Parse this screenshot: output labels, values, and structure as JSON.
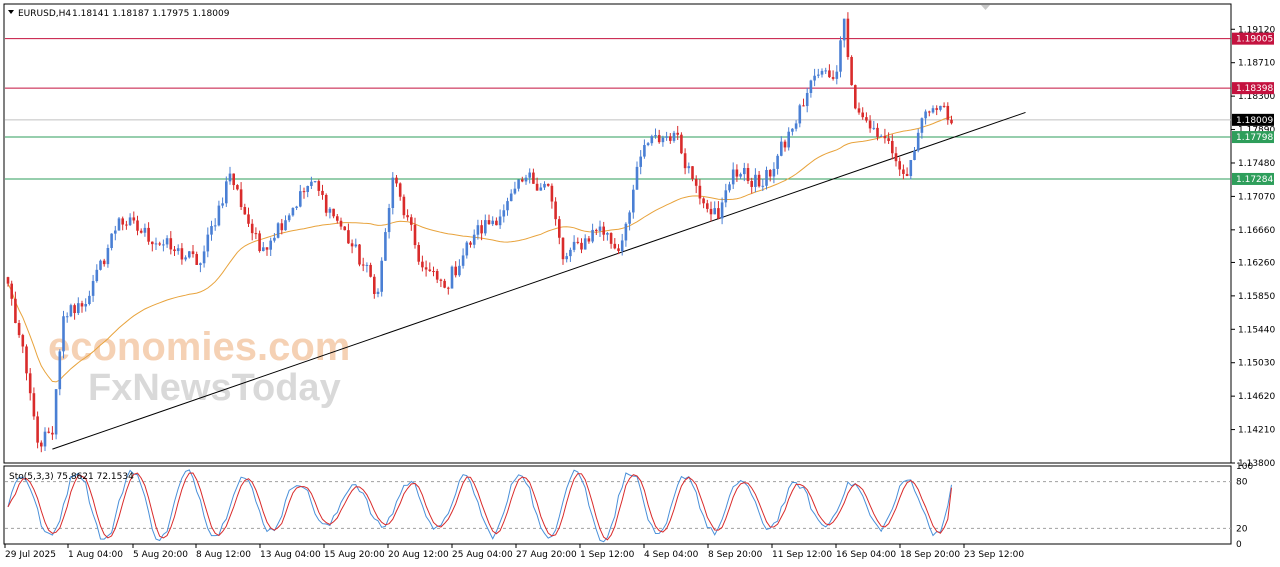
{
  "header": {
    "symbol": "EURUSD,H4",
    "ohlc": "1.18141 1.18187 1.17975 1.18009"
  },
  "stoch_header": {
    "label": "Sto(5,3,3) 75.8621 72.1534"
  },
  "watermark": {
    "line1": "economies.com",
    "line2": "FxNewsToday"
  },
  "colors": {
    "bull": "#4a7fd4",
    "bear": "#d92b2b",
    "ma": "#e8a33c",
    "resistance": "#c4123f",
    "support": "#2e9e5b",
    "trendline": "#000000",
    "stoch_main": "#4a90d9",
    "stoch_signal": "#d92b2b"
  },
  "chart_data": [
    {
      "type": "candlestick",
      "name": "EURUSD,H4",
      "ylim": [
        1.138,
        1.1943
      ],
      "y_ticks": [
        "1.19120",
        "1.18710",
        "1.18300",
        "1.17890",
        "1.17480",
        "1.17070",
        "1.16660",
        "1.16260",
        "1.15850",
        "1.15440",
        "1.15030",
        "1.14620",
        "1.14210",
        "1.13800"
      ],
      "x_ticks": [
        "29 Jul 2025",
        "1 Aug 04:00",
        "5 Aug 20:00",
        "8 Aug 12:00",
        "13 Aug 04:00",
        "15 Aug 20:00",
        "20 Aug 12:00",
        "25 Aug 04:00",
        "27 Aug 20:00",
        "1 Sep 12:00",
        "4 Sep 04:00",
        "8 Sep 20:00",
        "11 Sep 12:00",
        "16 Sep 04:00",
        "18 Sep 20:00",
        "23 Sep 12:00"
      ],
      "key_points": [
        {
          "bar": 0,
          "price": 1.16
        },
        {
          "bar": 5,
          "price": 1.149
        },
        {
          "bar": 8,
          "price": 1.1405
        },
        {
          "bar": 12,
          "price": 1.1415
        },
        {
          "bar": 15,
          "price": 1.156
        },
        {
          "bar": 22,
          "price": 1.1585
        },
        {
          "bar": 30,
          "price": 1.168
        },
        {
          "bar": 45,
          "price": 1.164
        },
        {
          "bar": 52,
          "price": 1.1625
        },
        {
          "bar": 60,
          "price": 1.1735
        },
        {
          "bar": 68,
          "price": 1.164
        },
        {
          "bar": 82,
          "price": 1.1725
        },
        {
          "bar": 90,
          "price": 1.167
        },
        {
          "bar": 100,
          "price": 1.159
        },
        {
          "bar": 104,
          "price": 1.173
        },
        {
          "bar": 112,
          "price": 1.162
        },
        {
          "bar": 118,
          "price": 1.1595
        },
        {
          "bar": 126,
          "price": 1.166
        },
        {
          "bar": 134,
          "price": 1.169
        },
        {
          "bar": 140,
          "price": 1.173
        },
        {
          "bar": 146,
          "price": 1.172
        },
        {
          "bar": 150,
          "price": 1.163
        },
        {
          "bar": 160,
          "price": 1.167
        },
        {
          "bar": 165,
          "price": 1.164
        },
        {
          "bar": 172,
          "price": 1.177
        },
        {
          "bar": 180,
          "price": 1.1785
        },
        {
          "bar": 186,
          "price": 1.172
        },
        {
          "bar": 192,
          "price": 1.168
        },
        {
          "bar": 196,
          "price": 1.174
        },
        {
          "bar": 204,
          "price": 1.172
        },
        {
          "bar": 212,
          "price": 1.179
        },
        {
          "bar": 218,
          "price": 1.1855
        },
        {
          "bar": 224,
          "price": 1.186
        },
        {
          "bar": 226,
          "price": 1.1925
        },
        {
          "bar": 229,
          "price": 1.1815
        },
        {
          "bar": 232,
          "price": 1.18
        },
        {
          "bar": 235,
          "price": 1.178
        },
        {
          "bar": 238,
          "price": 1.1775
        },
        {
          "bar": 241,
          "price": 1.174
        },
        {
          "bar": 243,
          "price": 1.1732
        },
        {
          "bar": 246,
          "price": 1.1785
        },
        {
          "bar": 249,
          "price": 1.181
        },
        {
          "bar": 252,
          "price": 1.1818
        },
        {
          "bar": 254,
          "price": 1.1801
        }
      ],
      "levels": [
        {
          "name": "resistance",
          "price": 1.19005,
          "label": "1.19005"
        },
        {
          "name": "resistance",
          "price": 1.18398,
          "label": "1.18398"
        },
        {
          "name": "current",
          "price": 1.18009,
          "label": "1.18009"
        },
        {
          "name": "support",
          "price": 1.17798,
          "label": "1.17798"
        },
        {
          "name": "support",
          "price": 1.17284,
          "label": "1.17284"
        }
      ],
      "trendline": {
        "start": {
          "bar": 12,
          "price": 1.1397
        },
        "end": {
          "bar": 275,
          "price": 1.181
        }
      },
      "moving_average": {
        "period_hint": "smoothed",
        "color_key": "ma"
      }
    },
    {
      "type": "line",
      "name": "Sto(5,3,3)",
      "ylim": [
        0,
        100
      ],
      "y_ticks": [
        "100",
        "80",
        "20",
        "0"
      ],
      "levels": [
        80,
        20
      ],
      "main_last": 75.8621,
      "signal_last": 72.1534
    }
  ]
}
